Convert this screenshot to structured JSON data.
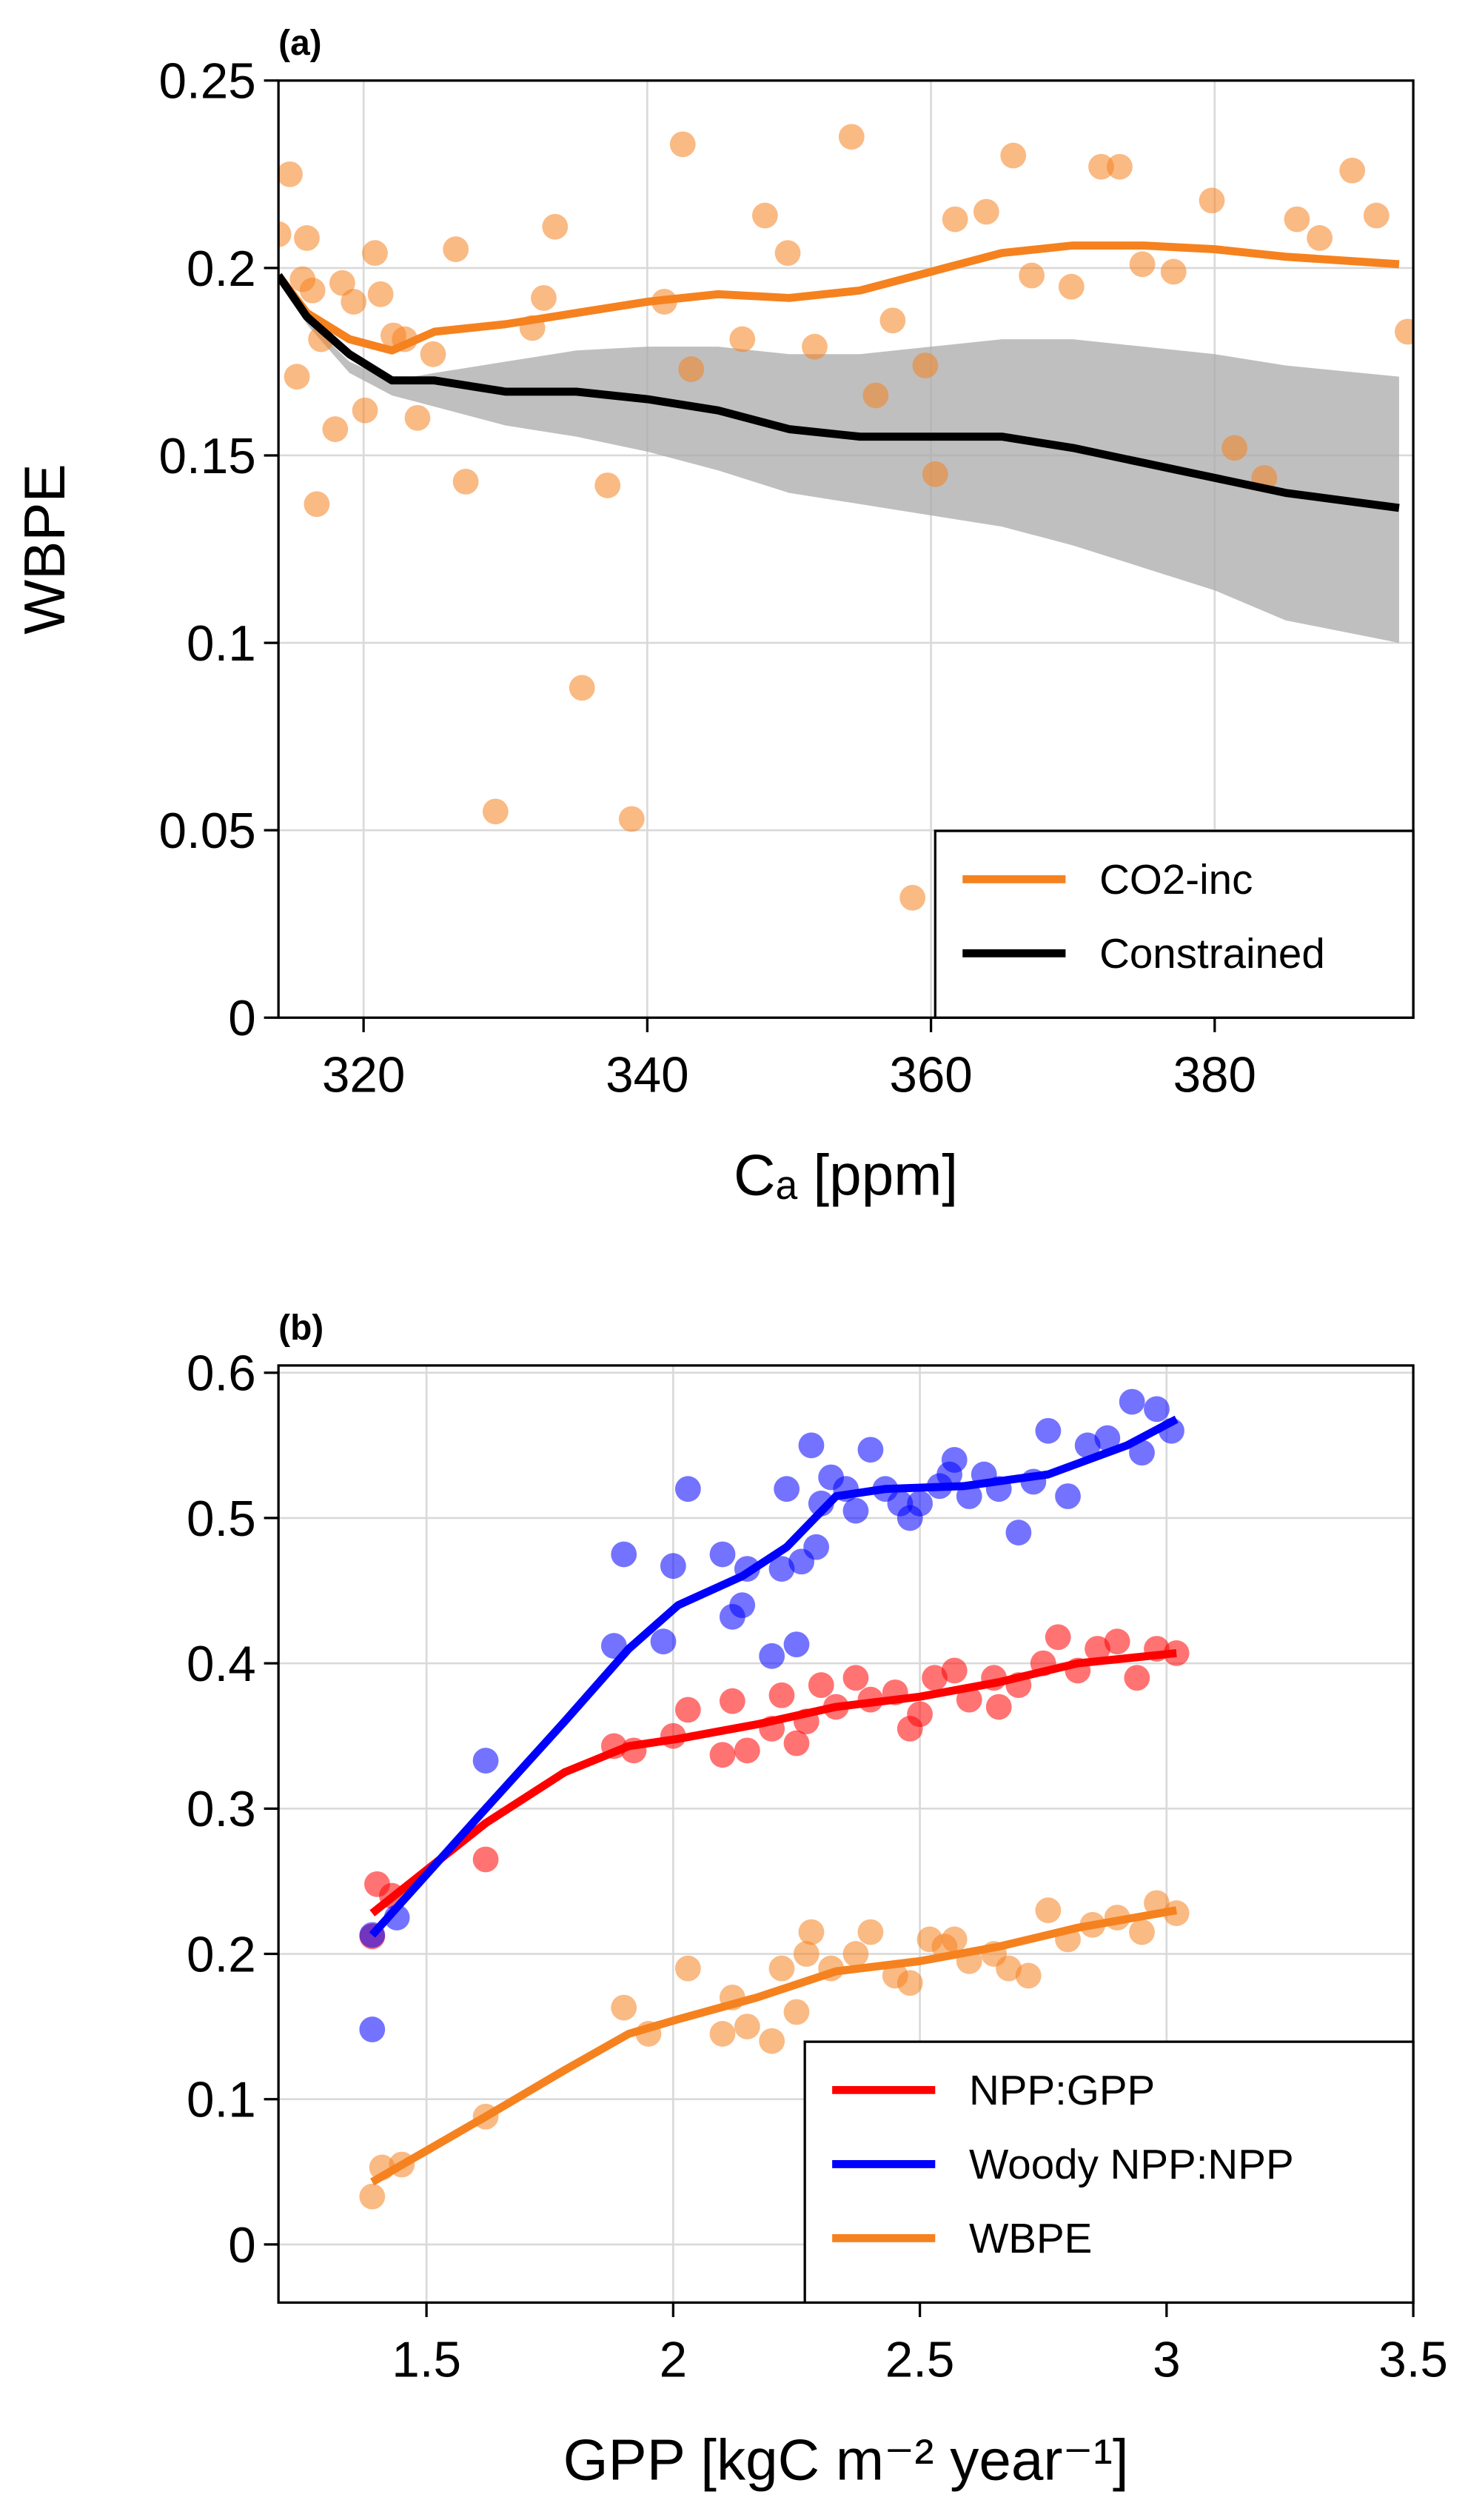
{
  "chart_data": [
    {
      "type": "scatter",
      "title": "(a)",
      "xlabel": "Cₐ [ppm]",
      "ylabel": "WBPE",
      "xlim": [
        314,
        394
      ],
      "xticks": [
        320,
        340,
        360,
        380
      ],
      "ylim": [
        0,
        0.25
      ],
      "yticks": [
        0,
        0.05,
        0.1,
        0.15,
        0.2,
        0.25
      ],
      "grid": true,
      "legend": "lower right",
      "band": {
        "color": "#aaaaaa",
        "x": [
          314,
          316,
          319,
          322,
          325,
          330,
          335,
          340,
          345,
          350,
          355,
          360,
          365,
          370,
          375,
          380,
          385,
          393
        ],
        "lower": [
          0.198,
          0.185,
          0.172,
          0.166,
          0.163,
          0.158,
          0.155,
          0.151,
          0.146,
          0.14,
          0.137,
          0.134,
          0.131,
          0.126,
          0.12,
          0.114,
          0.106,
          0.1
        ],
        "upper": [
          0.198,
          0.186,
          0.175,
          0.17,
          0.172,
          0.175,
          0.178,
          0.179,
          0.179,
          0.177,
          0.177,
          0.179,
          0.181,
          0.181,
          0.179,
          0.177,
          0.174,
          0.171
        ]
      },
      "points": [
        {
          "color": "#f5821f",
          "x": [
            314,
            314.8,
            315.3,
            315.7,
            316,
            316.4,
            316.7,
            317,
            318,
            318.5,
            319.3,
            320.1,
            320.8,
            321.2,
            322.1,
            322.9,
            323.8,
            324.9,
            326.5,
            327.2,
            329.3,
            331.9,
            332.7,
            333.5,
            335.4,
            337.2,
            338.9,
            341.2,
            342.5,
            343.1,
            346.7,
            348.3,
            349.9,
            351.8,
            354.4,
            356.1,
            357.3,
            358.7,
            359.6,
            360.3,
            361.7,
            363.9,
            365.8,
            367.1,
            369.9,
            372,
            373.3,
            374.9,
            377.1,
            379.8,
            381.4,
            383.5,
            385.8,
            387.4,
            389.7,
            391.4,
            393.6
          ],
          "values": [
            0.209,
            0.225,
            0.171,
            0.197,
            0.208,
            0.194,
            0.137,
            0.181,
            0.157,
            0.196,
            0.191,
            0.162,
            0.204,
            0.193,
            0.182,
            0.181,
            0.16,
            0.177,
            0.205,
            0.143,
            0.055,
            0.184,
            0.192,
            0.211,
            0.088,
            0.142,
            0.053,
            0.191,
            0.233,
            0.173,
            0.181,
            0.214,
            0.204,
            0.179,
            0.235,
            0.166,
            0.186,
            0.032,
            0.174,
            0.145,
            0.213,
            0.215,
            0.23,
            0.198,
            0.195,
            0.227,
            0.227,
            0.201,
            0.199,
            0.218,
            0.152,
            0.144,
            0.213,
            0.208,
            0.226,
            0.214,
            0.183
          ]
        }
      ],
      "series": [
        {
          "name": "CO2-inc",
          "color": "#f5821f",
          "x": [
            314,
            316,
            319,
            322,
            325,
            330,
            335,
            340,
            345,
            350,
            355,
            360,
            365,
            370,
            375,
            380,
            385,
            393
          ],
          "values": [
            0.198,
            0.188,
            0.181,
            0.178,
            0.183,
            0.185,
            0.188,
            0.191,
            0.193,
            0.192,
            0.194,
            0.199,
            0.204,
            0.206,
            0.206,
            0.205,
            0.203,
            0.201
          ]
        },
        {
          "name": "Constrained",
          "color": "#000000",
          "x": [
            314,
            316,
            319,
            322,
            325,
            330,
            335,
            340,
            345,
            350,
            355,
            360,
            365,
            370,
            375,
            380,
            385,
            393
          ],
          "values": [
            0.198,
            0.187,
            0.177,
            0.17,
            0.17,
            0.167,
            0.167,
            0.165,
            0.162,
            0.157,
            0.155,
            0.155,
            0.155,
            0.152,
            0.148,
            0.144,
            0.14,
            0.136
          ]
        }
      ]
    },
    {
      "type": "scatter",
      "title": "(b)",
      "xlabel": "GPP [kgC m⁻² year⁻¹]",
      "xlim": [
        1.2,
        3.5
      ],
      "xticks": [
        1.5,
        2,
        2.5,
        3,
        3.5
      ],
      "ylim": [
        -0.04,
        0.605
      ],
      "yticks": [
        0,
        0.1,
        0.2,
        0.3,
        0.4,
        0.5,
        0.6
      ],
      "grid": true,
      "legend": "lower right",
      "points": [
        {
          "color": "#ff0000",
          "x": [
            1.39,
            1.4,
            1.43,
            1.62,
            1.88,
            1.92,
            2.0,
            2.03,
            2.1,
            2.12,
            2.15,
            2.2,
            2.22,
            2.25,
            2.27,
            2.3,
            2.33,
            2.37,
            2.4,
            2.45,
            2.48,
            2.5,
            2.53,
            2.57,
            2.6,
            2.65,
            2.66,
            2.7,
            2.75,
            2.78,
            2.82,
            2.86,
            2.9,
            2.94,
            2.98,
            3.02
          ],
          "values": [
            0.212,
            0.248,
            0.24,
            0.265,
            0.343,
            0.34,
            0.35,
            0.368,
            0.337,
            0.374,
            0.34,
            0.355,
            0.378,
            0.345,
            0.36,
            0.385,
            0.37,
            0.39,
            0.375,
            0.38,
            0.355,
            0.365,
            0.39,
            0.395,
            0.375,
            0.39,
            0.37,
            0.385,
            0.4,
            0.418,
            0.395,
            0.41,
            0.415,
            0.39,
            0.41,
            0.407
          ]
        },
        {
          "color": "#0000ff",
          "x": [
            1.39,
            1.39,
            1.44,
            1.62,
            1.88,
            1.9,
            1.98,
            2.0,
            2.03,
            2.1,
            2.12,
            2.14,
            2.15,
            2.2,
            2.22,
            2.23,
            2.25,
            2.26,
            2.28,
            2.29,
            2.3,
            2.32,
            2.35,
            2.37,
            2.4,
            2.43,
            2.46,
            2.48,
            2.5,
            2.54,
            2.56,
            2.57,
            2.6,
            2.63,
            2.66,
            2.7,
            2.73,
            2.76,
            2.8,
            2.84,
            2.88,
            2.93,
            2.95,
            2.98,
            3.01
          ],
          "values": [
            0.148,
            0.213,
            0.225,
            0.333,
            0.412,
            0.475,
            0.415,
            0.467,
            0.52,
            0.475,
            0.432,
            0.44,
            0.465,
            0.405,
            0.465,
            0.52,
            0.413,
            0.47,
            0.55,
            0.48,
            0.51,
            0.528,
            0.52,
            0.505,
            0.547,
            0.52,
            0.51,
            0.5,
            0.51,
            0.522,
            0.53,
            0.54,
            0.515,
            0.53,
            0.52,
            0.49,
            0.525,
            0.56,
            0.515,
            0.55,
            0.555,
            0.58,
            0.545,
            0.575,
            0.56
          ]
        },
        {
          "color": "#f5821f",
          "x": [
            1.39,
            1.41,
            1.45,
            1.62,
            1.9,
            1.95,
            2.03,
            2.1,
            2.12,
            2.15,
            2.2,
            2.22,
            2.25,
            2.27,
            2.28,
            2.32,
            2.37,
            2.4,
            2.45,
            2.48,
            2.52,
            2.55,
            2.57,
            2.6,
            2.65,
            2.68,
            2.72,
            2.76,
            2.8,
            2.85,
            2.9,
            2.95,
            2.98,
            3.02
          ],
          "values": [
            0.033,
            0.053,
            0.055,
            0.088,
            0.163,
            0.145,
            0.19,
            0.145,
            0.17,
            0.15,
            0.14,
            0.19,
            0.16,
            0.2,
            0.215,
            0.19,
            0.2,
            0.215,
            0.185,
            0.18,
            0.21,
            0.205,
            0.21,
            0.195,
            0.2,
            0.19,
            0.185,
            0.23,
            0.21,
            0.22,
            0.225,
            0.215,
            0.235,
            0.228
          ]
        }
      ],
      "series": [
        {
          "name": "NPP:GPP",
          "color": "#ff0000",
          "x": [
            1.39,
            1.62,
            1.78,
            1.91,
            2.01,
            2.17,
            2.33,
            2.5,
            2.66,
            2.82,
            3.02
          ],
          "values": [
            0.228,
            0.29,
            0.325,
            0.343,
            0.348,
            0.358,
            0.37,
            0.377,
            0.387,
            0.4,
            0.407
          ]
        },
        {
          "name": "Woody NPP:NPP",
          "color": "#0000ff",
          "x": [
            1.39,
            1.62,
            1.78,
            1.91,
            2.01,
            2.14,
            2.23,
            2.33,
            2.43,
            2.59,
            2.76,
            2.92,
            3.02
          ],
          "values": [
            0.213,
            0.3,
            0.36,
            0.41,
            0.44,
            0.46,
            0.48,
            0.515,
            0.52,
            0.522,
            0.53,
            0.55,
            0.568
          ]
        },
        {
          "name": "WBPE",
          "color": "#f5821f",
          "x": [
            1.39,
            1.62,
            1.78,
            1.91,
            2.01,
            2.17,
            2.33,
            2.5,
            2.66,
            2.82,
            3.02
          ],
          "values": [
            0.043,
            0.088,
            0.12,
            0.145,
            0.155,
            0.17,
            0.188,
            0.195,
            0.205,
            0.218,
            0.23
          ]
        }
      ]
    }
  ]
}
